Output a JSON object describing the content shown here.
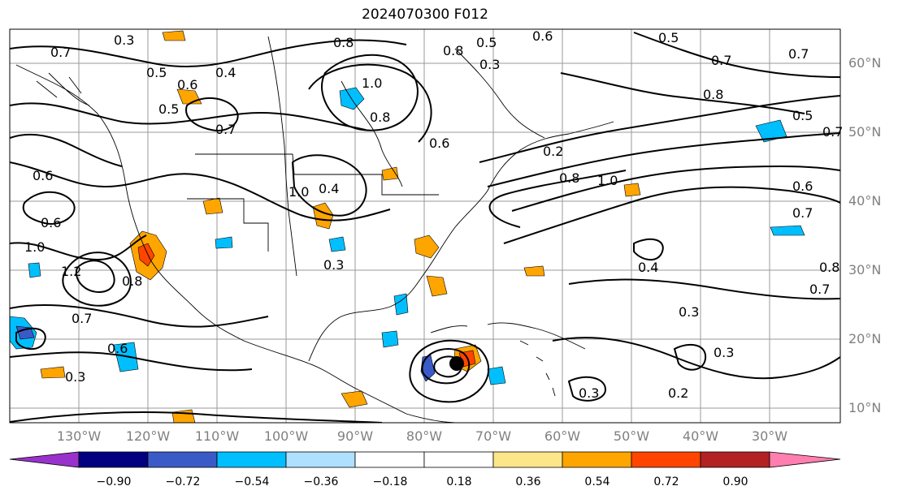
{
  "title": "2024070300 F012",
  "latitude_labels": [
    "60°N",
    "50°N",
    "40°N",
    "30°N",
    "20°N",
    "10°N"
  ],
  "longitude_labels": [
    "130°W",
    "120°W",
    "110°W",
    "100°W",
    "90°W",
    "80°W",
    "70°W",
    "60°W",
    "50°W",
    "40°W",
    "30°W"
  ],
  "colorbar": {
    "ticks": [
      "−0.90",
      "−0.72",
      "−0.54",
      "−0.36",
      "−0.18",
      "0.18",
      "0.36",
      "0.54",
      "0.72",
      "0.90"
    ],
    "colors": [
      "#9932cc",
      "#000080",
      "#3a5bc7",
      "#00bfff",
      "#aee0ff",
      "#ffffff",
      "#fde68a",
      "#ffa500",
      "#ff4500",
      "#b22222",
      "#ff7fb0"
    ]
  },
  "contour_labels": [
    "0.3",
    "0.7",
    "0.5",
    "0.6",
    "0.4",
    "0.5",
    "0.8",
    "0.7",
    "1.0",
    "0.8",
    "0.5",
    "0.6",
    "0.3",
    "0.8",
    "0.7",
    "0.8",
    "0.5",
    "0.6",
    "0.5",
    "0.7",
    "0.6",
    "1.0",
    "1.2",
    "0.8",
    "0.7",
    "0.6",
    "0.3",
    "0.4",
    "0.3",
    "1.0",
    "0.6",
    "0.2",
    "0.8",
    "1.0",
    "0.4",
    "0.3",
    "0.3",
    "0.2",
    "0.3",
    "0.6",
    "0.7",
    "0.8",
    "0.7",
    "0.7"
  ]
}
